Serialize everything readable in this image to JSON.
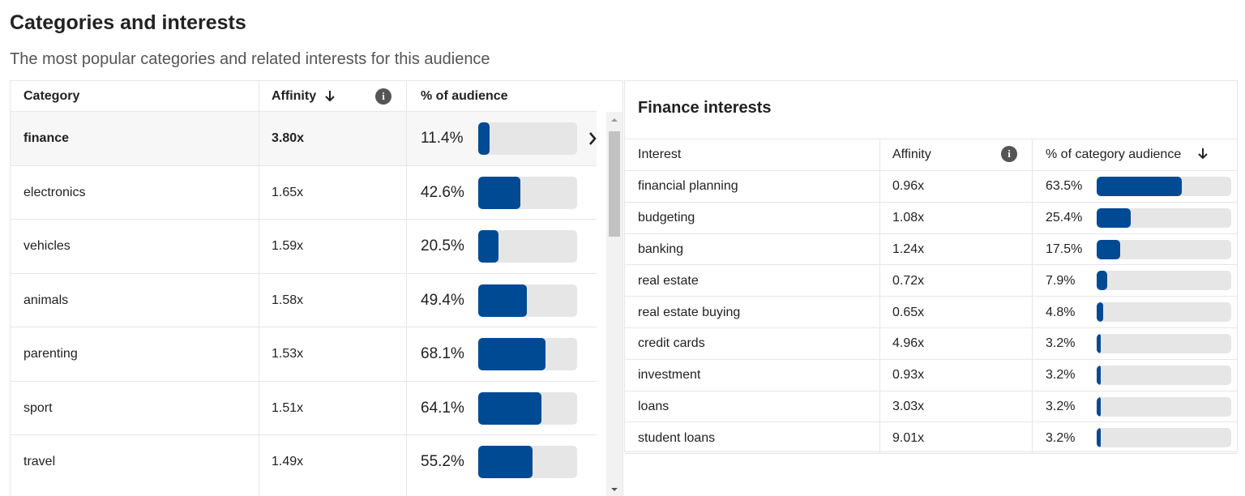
{
  "header": {
    "title": "Categories and interests",
    "subtitle": "The most popular categories and related interests for this audience"
  },
  "categories_table": {
    "columns": [
      "Category",
      "Affinity",
      "% of audience"
    ],
    "rows": [
      {
        "category": "finance",
        "affinity": "3.80x",
        "audience": {
          "value": 11.4,
          "label": "11.4%"
        }
      },
      {
        "category": "electronics",
        "affinity": "1.65x",
        "audience": {
          "value": 42.6,
          "label": "42.6%"
        }
      },
      {
        "category": "vehicles",
        "affinity": "1.59x",
        "audience": {
          "value": 20.5,
          "label": "20.5%"
        }
      },
      {
        "category": "animals",
        "affinity": "1.58x",
        "audience": {
          "value": 49.4,
          "label": "49.4%"
        }
      },
      {
        "category": "parenting",
        "affinity": "1.53x",
        "audience": {
          "value": 68.1,
          "label": "68.1%"
        }
      },
      {
        "category": "sport",
        "affinity": "1.51x",
        "audience": {
          "value": 64.1,
          "label": "64.1%"
        }
      },
      {
        "category": "travel",
        "affinity": "1.49x",
        "audience": {
          "value": 55.2,
          "label": "55.2%"
        }
      }
    ]
  },
  "interests_panel": {
    "title": "Finance interests",
    "columns": [
      "Interest",
      "Affinity",
      "% of category audience"
    ],
    "rows": [
      {
        "interest": "financial planning",
        "affinity": "0.96x",
        "audience": {
          "value": 63.5,
          "label": "63.5%"
        }
      },
      {
        "interest": "budgeting",
        "affinity": "1.08x",
        "audience": {
          "value": 25.4,
          "label": "25.4%"
        }
      },
      {
        "interest": "banking",
        "affinity": "1.24x",
        "audience": {
          "value": 17.5,
          "label": "17.5%"
        }
      },
      {
        "interest": "real estate",
        "affinity": "0.72x",
        "audience": {
          "value": 7.9,
          "label": "7.9%"
        }
      },
      {
        "interest": "real estate buying",
        "affinity": "0.65x",
        "audience": {
          "value": 4.8,
          "label": "4.8%"
        }
      },
      {
        "interest": "credit cards",
        "affinity": "4.96x",
        "audience": {
          "value": 3.2,
          "label": "3.2%"
        }
      },
      {
        "interest": "investment",
        "affinity": "0.93x",
        "audience": {
          "value": 3.2,
          "label": "3.2%"
        }
      },
      {
        "interest": "loans",
        "affinity": "3.03x",
        "audience": {
          "value": 3.2,
          "label": "3.2%"
        }
      },
      {
        "interest": "student loans",
        "affinity": "9.01x",
        "audience": {
          "value": 3.2,
          "label": "3.2%"
        }
      }
    ]
  }
}
